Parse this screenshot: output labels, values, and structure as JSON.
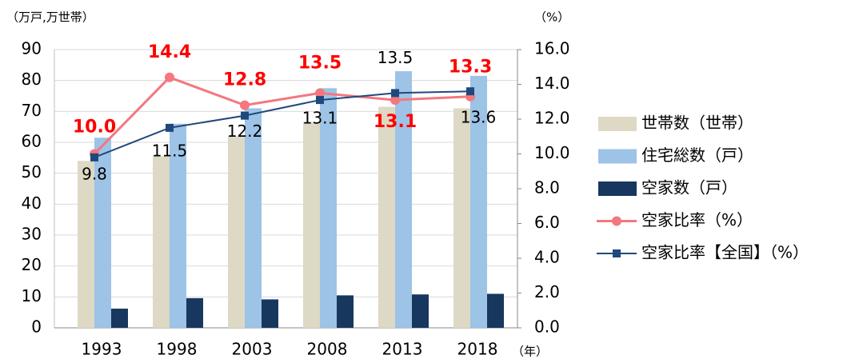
{
  "chart_data": {
    "type": "bar-line",
    "y_label": "（万戸,万世帯）",
    "y2_label": "（%）",
    "x_label": "（年）",
    "categories": [
      "1993",
      "1998",
      "2003",
      "2008",
      "2013",
      "2018"
    ],
    "ylim": [
      0,
      90
    ],
    "yticks": [
      0,
      10,
      20,
      30,
      40,
      50,
      60,
      70,
      80,
      90
    ],
    "y2lim": [
      0,
      16
    ],
    "y2ticks": [
      {
        "value": 0,
        "label": "0.0"
      },
      {
        "value": 2,
        "label": "2.0"
      },
      {
        "value": 4,
        "label": "4.0"
      },
      {
        "value": 6,
        "label": "6.0"
      },
      {
        "value": 8,
        "label": "8.0"
      },
      {
        "value": 10,
        "label": "10.0"
      },
      {
        "value": 12,
        "label": "12.0"
      },
      {
        "value": 14,
        "label": "14.0"
      },
      {
        "value": 16,
        "label": "16.0"
      }
    ],
    "grid": true,
    "legend": "right",
    "series": [
      {
        "name": "世帯数（世帯）",
        "type": "bar",
        "color": "#ddd9c4",
        "values": [
          54,
          55.5,
          62,
          66.5,
          71.5,
          71
        ]
      },
      {
        "name": "住宅総数（戸）",
        "type": "bar",
        "color": "#9dc3e6",
        "values": [
          61.5,
          66,
          71,
          77.5,
          83,
          81.5
        ]
      },
      {
        "name": "空家数（戸）",
        "type": "bar",
        "color": "#17375e",
        "values": [
          6.2,
          9.6,
          9.2,
          10.5,
          10.8,
          11
        ]
      },
      {
        "name": "空家比率（%）",
        "type": "line",
        "axis": "y2",
        "color": "#f4777f",
        "marker": "circle",
        "values": [
          10,
          14.4,
          12.8,
          13.5,
          13.1,
          13.3
        ],
        "value_labels": [
          "10.0",
          "14.4",
          "12.8",
          "13.5",
          "13.1",
          "13.3"
        ],
        "label_color": "#ff0000"
      },
      {
        "name": "空家比率【全国】（%）",
        "type": "line",
        "axis": "y2",
        "color": "#1f497d",
        "marker": "square",
        "values": [
          9.8,
          11.5,
          12.2,
          13.1,
          13.5,
          13.6
        ],
        "label_color": "#000000"
      }
    ]
  }
}
